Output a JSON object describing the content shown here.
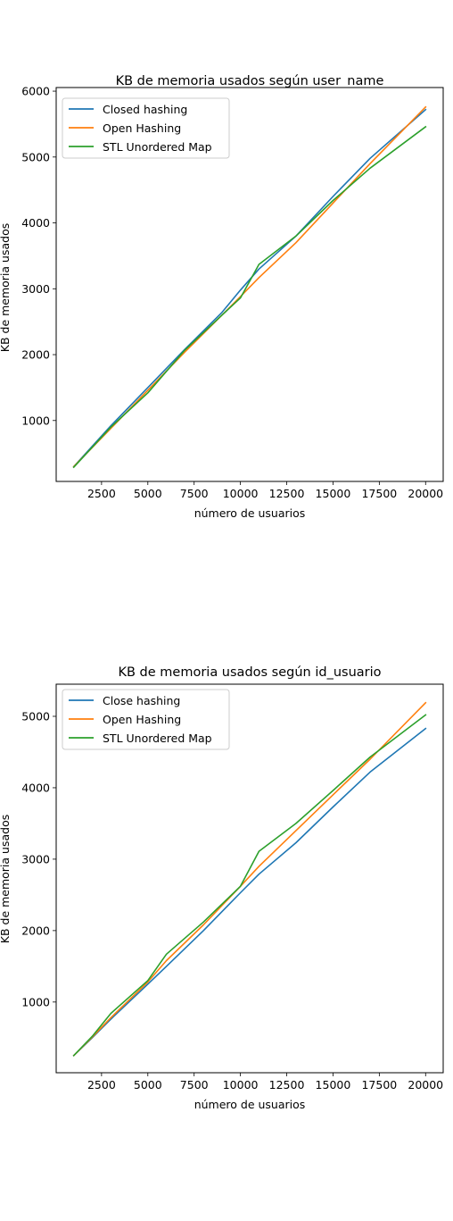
{
  "chart_data": [
    {
      "type": "line",
      "title": "KB de memoria usados según user_name",
      "xlabel": "número de usuarios",
      "ylabel": "KB de memoria usados",
      "xlim": [
        50,
        20950
      ],
      "ylim": [
        75,
        6055
      ],
      "xticks": [
        2500,
        5000,
        7500,
        10000,
        12500,
        15000,
        17500,
        20000
      ],
      "yticks": [
        1000,
        2000,
        3000,
        4000,
        5000,
        6000
      ],
      "legend": "upper-left",
      "grid": false,
      "series": [
        {
          "name": "Closed hashing",
          "color": "#1f77b4",
          "x": [
            1000,
            3000,
            5000,
            7000,
            9000,
            10000,
            11000,
            13000,
            15000,
            17000,
            20000
          ],
          "y": [
            300,
            920,
            1500,
            2080,
            2640,
            2980,
            3300,
            3800,
            4400,
            4980,
            5720
          ]
        },
        {
          "name": "Open Hashing",
          "color": "#ff7f0e",
          "x": [
            1000,
            3000,
            5000,
            7000,
            9000,
            10000,
            11000,
            13000,
            15000,
            17000,
            20000
          ],
          "y": [
            300,
            880,
            1460,
            2040,
            2600,
            2880,
            3170,
            3700,
            4300,
            4900,
            5760
          ]
        },
        {
          "name": "STL Unordered Map",
          "color": "#2ca02c",
          "x": [
            1000,
            3000,
            5000,
            7000,
            9000,
            10000,
            11000,
            13000,
            15000,
            17000,
            20000
          ],
          "y": [
            290,
            900,
            1420,
            2070,
            2600,
            2860,
            3370,
            3800,
            4340,
            4830,
            5460
          ]
        }
      ]
    },
    {
      "type": "line",
      "title": "KB de memoria usados según id_usuario",
      "xlabel": "número de usuarios",
      "ylabel": "KB de memoria usados",
      "xlim": [
        50,
        20950
      ],
      "ylim": [
        10,
        5450
      ],
      "xticks": [
        2500,
        5000,
        7500,
        10000,
        12500,
        15000,
        17500,
        20000
      ],
      "yticks": [
        1000,
        2000,
        3000,
        4000,
        5000
      ],
      "legend": "upper-left",
      "grid": false,
      "series": [
        {
          "name": "Close hashing",
          "color": "#1f77b4",
          "x": [
            1000,
            2000,
            3000,
            5000,
            6000,
            8000,
            10000,
            11000,
            13000,
            15000,
            17000,
            20000
          ],
          "y": [
            250,
            500,
            760,
            1250,
            1500,
            2000,
            2530,
            2790,
            3230,
            3730,
            4220,
            4830
          ]
        },
        {
          "name": "Open Hashing",
          "color": "#ff7f0e",
          "x": [
            1000,
            2000,
            3000,
            5000,
            6000,
            8000,
            10000,
            11000,
            13000,
            15000,
            17000,
            20000
          ],
          "y": [
            250,
            510,
            780,
            1280,
            1580,
            2080,
            2620,
            2900,
            3400,
            3900,
            4400,
            5190
          ]
        },
        {
          "name": "STL Unordered Map",
          "color": "#2ca02c",
          "x": [
            1000,
            2000,
            3000,
            5000,
            6000,
            8000,
            10000,
            11000,
            13000,
            15000,
            17000,
            20000
          ],
          "y": [
            250,
            520,
            840,
            1300,
            1670,
            2120,
            2620,
            3110,
            3500,
            3960,
            4430,
            5020
          ]
        }
      ]
    }
  ]
}
